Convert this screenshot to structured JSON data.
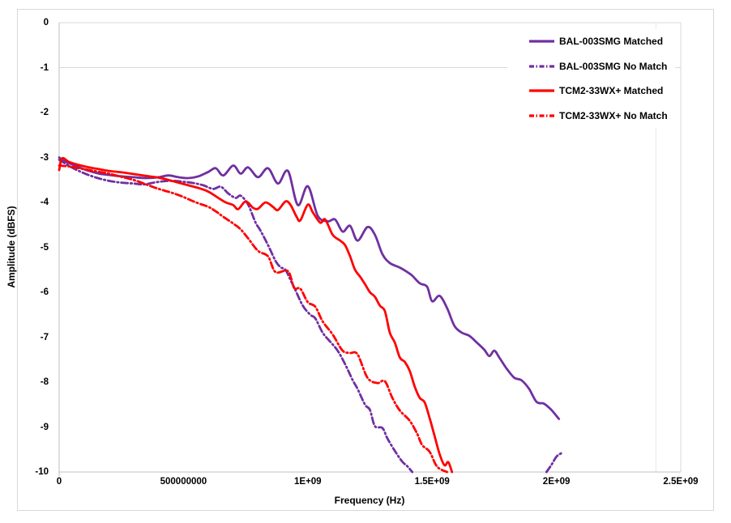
{
  "figure": {
    "background": "#FFFFFF",
    "border_color": "#D9D9D9"
  },
  "colors": {
    "purple": "#7030A0",
    "red": "#FF0000",
    "gridline": "#D9D9D9",
    "axis_line": "#BFBFBF",
    "faint_line": "#E7E7E7",
    "text": "#000000"
  },
  "chart_data": {
    "type": "line",
    "title": "",
    "xlabel": "Frequency (Hz)",
    "ylabel": "Amplitude (dBFS)",
    "x_unit": "GHz",
    "xlim_ghz": [
      0,
      2.5
    ],
    "ylim": [
      -10,
      0
    ],
    "grid": {
      "horizontal_lines_at": [
        -1
      ],
      "vertical_faint_lines_ghz": [
        2.4,
        2.5
      ],
      "plot_border": true
    },
    "x_ticks": {
      "values_ghz": [
        0,
        0.5,
        1.0,
        1.5,
        2.0,
        2.5
      ],
      "labels": [
        "0",
        "500000000",
        "1E+09",
        "1.5E+09",
        "2E+09",
        "2.5E+09"
      ]
    },
    "y_ticks": {
      "values": [
        0,
        -1,
        -2,
        -3,
        -4,
        -5,
        -6,
        -7,
        -8,
        -9,
        -10
      ],
      "labels": [
        "0",
        "-1",
        "-2",
        "-3",
        "-4",
        "-5",
        "-6",
        "-7",
        "-8",
        "-9",
        "-10"
      ]
    },
    "legend": {
      "position": "top-right-inside",
      "background": "#FFFFFF"
    },
    "series": [
      {
        "name": "BAL-003SMG Matched",
        "color": "#7030A0",
        "line_style": "solid",
        "points": [
          [
            0,
            -3.0
          ],
          [
            0.02,
            -3.08
          ],
          [
            0.05,
            -3.15
          ],
          [
            0.08,
            -3.22
          ],
          [
            0.12,
            -3.3
          ],
          [
            0.16,
            -3.36
          ],
          [
            0.2,
            -3.39
          ],
          [
            0.25,
            -3.42
          ],
          [
            0.3,
            -3.44
          ],
          [
            0.35,
            -3.46
          ],
          [
            0.4,
            -3.44
          ],
          [
            0.44,
            -3.4
          ],
          [
            0.48,
            -3.44
          ],
          [
            0.52,
            -3.46
          ],
          [
            0.56,
            -3.42
          ],
          [
            0.6,
            -3.32
          ],
          [
            0.63,
            -3.24
          ],
          [
            0.66,
            -3.4
          ],
          [
            0.7,
            -3.18
          ],
          [
            0.73,
            -3.36
          ],
          [
            0.76,
            -3.22
          ],
          [
            0.8,
            -3.44
          ],
          [
            0.84,
            -3.24
          ],
          [
            0.88,
            -3.58
          ],
          [
            0.92,
            -3.3
          ],
          [
            0.96,
            -4.06
          ],
          [
            1.0,
            -3.64
          ],
          [
            1.04,
            -4.3
          ],
          [
            1.08,
            -4.42
          ],
          [
            1.11,
            -4.38
          ],
          [
            1.14,
            -4.65
          ],
          [
            1.17,
            -4.52
          ],
          [
            1.2,
            -4.85
          ],
          [
            1.24,
            -4.55
          ],
          [
            1.27,
            -4.72
          ],
          [
            1.3,
            -5.15
          ],
          [
            1.33,
            -5.35
          ],
          [
            1.37,
            -5.45
          ],
          [
            1.4,
            -5.55
          ],
          [
            1.42,
            -5.63
          ],
          [
            1.45,
            -5.8
          ],
          [
            1.48,
            -5.88
          ],
          [
            1.5,
            -6.2
          ],
          [
            1.53,
            -6.08
          ],
          [
            1.56,
            -6.35
          ],
          [
            1.59,
            -6.75
          ],
          [
            1.62,
            -6.9
          ],
          [
            1.65,
            -6.97
          ],
          [
            1.68,
            -7.12
          ],
          [
            1.71,
            -7.28
          ],
          [
            1.73,
            -7.42
          ],
          [
            1.75,
            -7.3
          ],
          [
            1.77,
            -7.45
          ],
          [
            1.8,
            -7.7
          ],
          [
            1.83,
            -7.9
          ],
          [
            1.86,
            -7.96
          ],
          [
            1.89,
            -8.15
          ],
          [
            1.92,
            -8.44
          ],
          [
            1.95,
            -8.48
          ],
          [
            1.98,
            -8.62
          ],
          [
            2.01,
            -8.82
          ]
        ]
      },
      {
        "name": "BAL-003SMG No Match",
        "color": "#7030A0",
        "line_style": "dash-dot",
        "points": [
          [
            0,
            -3.05
          ],
          [
            0.05,
            -3.22
          ],
          [
            0.1,
            -3.35
          ],
          [
            0.15,
            -3.45
          ],
          [
            0.2,
            -3.52
          ],
          [
            0.25,
            -3.56
          ],
          [
            0.3,
            -3.58
          ],
          [
            0.34,
            -3.6
          ],
          [
            0.38,
            -3.56
          ],
          [
            0.42,
            -3.53
          ],
          [
            0.46,
            -3.52
          ],
          [
            0.5,
            -3.54
          ],
          [
            0.54,
            -3.57
          ],
          [
            0.58,
            -3.62
          ],
          [
            0.62,
            -3.7
          ],
          [
            0.65,
            -3.65
          ],
          [
            0.68,
            -3.8
          ],
          [
            0.71,
            -3.9
          ],
          [
            0.73,
            -3.85
          ],
          [
            0.76,
            -4.05
          ],
          [
            0.79,
            -4.45
          ],
          [
            0.81,
            -4.63
          ],
          [
            0.84,
            -4.95
          ],
          [
            0.87,
            -5.3
          ],
          [
            0.89,
            -5.44
          ],
          [
            0.91,
            -5.5
          ],
          [
            0.93,
            -5.72
          ],
          [
            0.95,
            -5.95
          ],
          [
            0.98,
            -6.3
          ],
          [
            1.01,
            -6.5
          ],
          [
            1.03,
            -6.58
          ],
          [
            1.06,
            -6.9
          ],
          [
            1.09,
            -7.1
          ],
          [
            1.12,
            -7.3
          ],
          [
            1.15,
            -7.6
          ],
          [
            1.18,
            -7.95
          ],
          [
            1.2,
            -8.15
          ],
          [
            1.23,
            -8.5
          ],
          [
            1.25,
            -8.62
          ],
          [
            1.27,
            -8.98
          ],
          [
            1.3,
            -9.02
          ],
          [
            1.32,
            -9.25
          ],
          [
            1.35,
            -9.53
          ],
          [
            1.38,
            -9.77
          ],
          [
            1.4,
            -9.87
          ],
          [
            1.42,
            -10.0
          ]
        ],
        "segment2": [
          [
            1.96,
            -10.0
          ],
          [
            1.98,
            -9.84
          ],
          [
            2.0,
            -9.66
          ],
          [
            2.02,
            -9.58
          ]
        ]
      },
      {
        "name": "TCM2-33WX+ Matched",
        "color": "#FF0000",
        "line_style": "solid",
        "points": [
          [
            0,
            -3.28
          ],
          [
            0.012,
            -3.02
          ],
          [
            0.04,
            -3.1
          ],
          [
            0.08,
            -3.17
          ],
          [
            0.12,
            -3.22
          ],
          [
            0.16,
            -3.26
          ],
          [
            0.2,
            -3.3
          ],
          [
            0.25,
            -3.33
          ],
          [
            0.3,
            -3.37
          ],
          [
            0.35,
            -3.41
          ],
          [
            0.4,
            -3.45
          ],
          [
            0.44,
            -3.5
          ],
          [
            0.48,
            -3.56
          ],
          [
            0.52,
            -3.62
          ],
          [
            0.56,
            -3.68
          ],
          [
            0.6,
            -3.76
          ],
          [
            0.64,
            -3.9
          ],
          [
            0.67,
            -4.0
          ],
          [
            0.7,
            -4.06
          ],
          [
            0.72,
            -4.15
          ],
          [
            0.75,
            -3.98
          ],
          [
            0.78,
            -4.12
          ],
          [
            0.8,
            -4.14
          ],
          [
            0.83,
            -4.0
          ],
          [
            0.86,
            -4.1
          ],
          [
            0.88,
            -4.17
          ],
          [
            0.91,
            -3.98
          ],
          [
            0.93,
            -4.05
          ],
          [
            0.955,
            -4.32
          ],
          [
            0.97,
            -4.4
          ],
          [
            1.0,
            -4.05
          ],
          [
            1.02,
            -4.22
          ],
          [
            1.05,
            -4.45
          ],
          [
            1.07,
            -4.38
          ],
          [
            1.1,
            -4.72
          ],
          [
            1.13,
            -4.85
          ],
          [
            1.15,
            -4.95
          ],
          [
            1.17,
            -5.2
          ],
          [
            1.19,
            -5.5
          ],
          [
            1.21,
            -5.65
          ],
          [
            1.23,
            -5.82
          ],
          [
            1.25,
            -6.0
          ],
          [
            1.27,
            -6.1
          ],
          [
            1.29,
            -6.3
          ],
          [
            1.31,
            -6.42
          ],
          [
            1.33,
            -6.9
          ],
          [
            1.35,
            -7.12
          ],
          [
            1.37,
            -7.45
          ],
          [
            1.39,
            -7.55
          ],
          [
            1.41,
            -7.75
          ],
          [
            1.43,
            -8.1
          ],
          [
            1.45,
            -8.35
          ],
          [
            1.47,
            -8.45
          ],
          [
            1.49,
            -8.8
          ],
          [
            1.51,
            -9.2
          ],
          [
            1.53,
            -9.6
          ],
          [
            1.55,
            -9.85
          ],
          [
            1.565,
            -9.78
          ],
          [
            1.58,
            -10.0
          ]
        ]
      },
      {
        "name": "TCM2-33WX+ No Match",
        "color": "#FF0000",
        "line_style": "dash-dot",
        "points": [
          [
            0,
            -3.18
          ],
          [
            0.04,
            -3.2
          ],
          [
            0.08,
            -3.24
          ],
          [
            0.12,
            -3.28
          ],
          [
            0.16,
            -3.32
          ],
          [
            0.2,
            -3.36
          ],
          [
            0.25,
            -3.43
          ],
          [
            0.3,
            -3.5
          ],
          [
            0.35,
            -3.6
          ],
          [
            0.4,
            -3.7
          ],
          [
            0.45,
            -3.78
          ],
          [
            0.5,
            -3.88
          ],
          [
            0.55,
            -4.0
          ],
          [
            0.6,
            -4.1
          ],
          [
            0.63,
            -4.2
          ],
          [
            0.66,
            -4.32
          ],
          [
            0.7,
            -4.47
          ],
          [
            0.73,
            -4.6
          ],
          [
            0.76,
            -4.8
          ],
          [
            0.8,
            -5.08
          ],
          [
            0.84,
            -5.2
          ],
          [
            0.87,
            -5.55
          ],
          [
            0.92,
            -5.53
          ],
          [
            0.945,
            -5.9
          ],
          [
            0.97,
            -5.92
          ],
          [
            1.0,
            -6.22
          ],
          [
            1.03,
            -6.32
          ],
          [
            1.06,
            -6.65
          ],
          [
            1.1,
            -6.94
          ],
          [
            1.14,
            -7.3
          ],
          [
            1.17,
            -7.35
          ],
          [
            1.2,
            -7.38
          ],
          [
            1.24,
            -7.9
          ],
          [
            1.28,
            -8.02
          ],
          [
            1.31,
            -7.98
          ],
          [
            1.34,
            -8.35
          ],
          [
            1.37,
            -8.63
          ],
          [
            1.41,
            -8.86
          ],
          [
            1.44,
            -9.15
          ],
          [
            1.46,
            -9.4
          ],
          [
            1.49,
            -9.55
          ],
          [
            1.52,
            -9.88
          ],
          [
            1.56,
            -10.0
          ]
        ]
      }
    ]
  }
}
